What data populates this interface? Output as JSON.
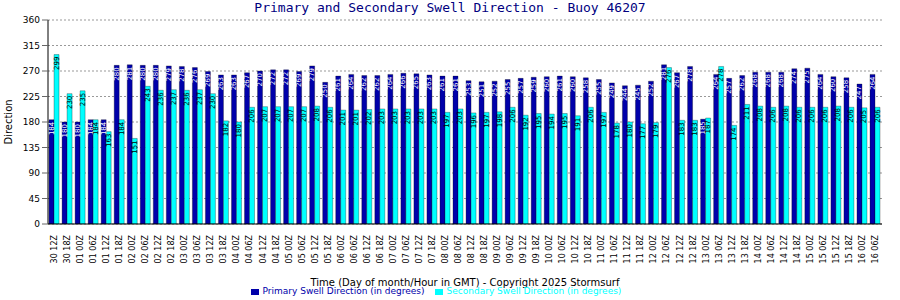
{
  "chart_data": {
    "type": "bar",
    "title": "Primary and Secondary Swell Direction - Buoy 46207",
    "x_label": "Time (Day of month/Hour in GMT) - Copyright 2025 Stormsurf",
    "y_label": "Direction",
    "categories": [
      "30 12Z",
      "30 18Z",
      "01 00Z",
      "01 06Z",
      "01 12Z",
      "01 18Z",
      "02 00Z",
      "02 06Z",
      "02 12Z",
      "02 18Z",
      "03 00Z",
      "03 06Z",
      "03 12Z",
      "03 18Z",
      "04 00Z",
      "04 06Z",
      "04 12Z",
      "04 18Z",
      "05 00Z",
      "05 06Z",
      "05 12Z",
      "05 18Z",
      "06 00Z",
      "06 06Z",
      "06 12Z",
      "06 18Z",
      "07 00Z",
      "07 06Z",
      "07 12Z",
      "07 18Z",
      "08 00Z",
      "08 06Z",
      "08 12Z",
      "08 18Z",
      "09 00Z",
      "09 06Z",
      "09 12Z",
      "09 18Z",
      "10 00Z",
      "10 06Z",
      "10 12Z",
      "10 18Z",
      "11 00Z",
      "11 06Z",
      "11 12Z",
      "11 18Z",
      "12 00Z",
      "12 06Z",
      "12 12Z",
      "12 18Z",
      "13 00Z",
      "13 06Z",
      "13 12Z",
      "13 18Z",
      "14 00Z",
      "14 06Z",
      "14 12Z",
      "14 18Z",
      "15 00Z",
      "15 06Z",
      "15 12Z",
      "15 18Z",
      "16 00Z",
      "16 06Z"
    ],
    "series": [
      {
        "name": "Primary Swell Direction (in degrees)",
        "color": "#0000aa",
        "values": [
          184,
          180,
          180,
          184,
          184,
          280,
          281,
          280,
          280,
          279,
          278,
          276,
          269,
          263,
          263,
          267,
          270,
          272,
          272,
          269,
          279,
          250,
          261,
          264,
          262,
          262,
          264,
          266,
          265,
          263,
          261,
          261,
          253,
          251,
          252,
          255,
          257,
          259,
          260,
          261,
          260,
          258,
          255,
          249,
          244,
          245,
          252,
          281,
          267,
          278,
          185,
          264,
          257,
          262,
          268,
          268,
          268,
          274,
          275,
          264,
          260,
          258,
          247,
          264
        ]
      },
      {
        "name": "Secondary Swell Direction (in degrees)",
        "color": "#00ffff",
        "values": [
          299,
          230,
          235,
          184,
          163,
          184,
          151,
          243,
          236,
          237,
          236,
          237,
          230,
          182,
          180,
          206,
          207,
          207,
          207,
          207,
          208,
          206,
          201,
          201,
          202,
          203,
          203,
          203,
          203,
          203,
          197,
          203,
          196,
          197,
          198,
          206,
          192,
          195,
          194,
          195,
          191,
          206,
          197,
          178,
          180,
          177,
          179,
          276,
          183,
          183,
          187,
          278,
          174,
          211,
          208,
          206,
          208,
          206,
          206,
          206,
          208,
          206,
          205,
          206
        ]
      }
    ],
    "ylim": [
      0,
      360
    ],
    "yticks": [
      0,
      45,
      90,
      135,
      180,
      225,
      270,
      315,
      360
    ],
    "grid": true,
    "data_labels": true,
    "legend": "bottom"
  }
}
